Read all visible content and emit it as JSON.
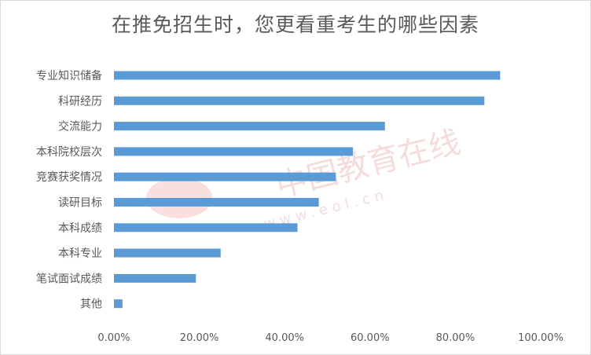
{
  "chart_data": {
    "type": "bar",
    "orientation": "horizontal",
    "title": "在推免招生时，您更看重考生的哪些因素",
    "categories": [
      "专业知识储备",
      "科研经历",
      "交流能力",
      "本科院校层次",
      "竞赛获奖情况",
      "读研目标",
      "本科成绩",
      "本科专业",
      "笔试面试成绩",
      "其他"
    ],
    "values": [
      0.905,
      0.868,
      0.635,
      0.56,
      0.52,
      0.48,
      0.43,
      0.25,
      0.192,
      0.02
    ],
    "xlabel": "",
    "ylabel": "",
    "xlim": [
      0,
      1
    ],
    "x_ticks": [
      "0.00%",
      "20.00%",
      "40.00%",
      "60.00%",
      "80.00%",
      "100.00%"
    ],
    "grid": false,
    "legend": "none",
    "bar_color": "#5b9bd5"
  },
  "watermark": {
    "text": "中国教育在线",
    "url": "www.eol.cn"
  }
}
